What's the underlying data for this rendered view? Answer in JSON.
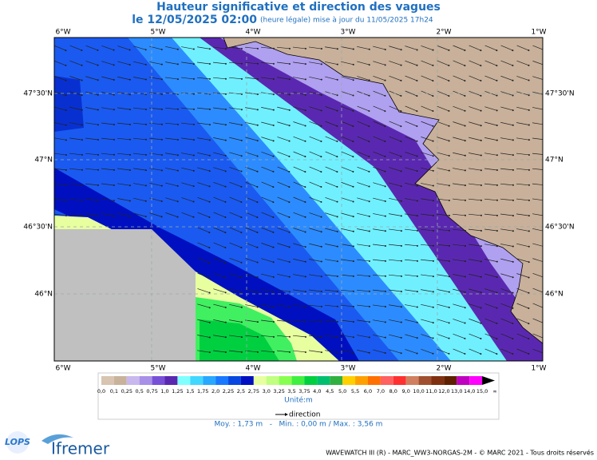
{
  "title": "Hauteur significative et direction des vagues",
  "subtitle": {
    "date": "le 12/05/2025 02:00",
    "note": "(heure légale) mise à jour du 11/05/2025 17h24"
  },
  "map": {
    "lon_labels": [
      "6°W",
      "5°W",
      "4°W",
      "3°W",
      "2°W",
      "1°W"
    ],
    "lat_labels": [
      "47°30'N",
      "47°N",
      "46°30'N",
      "46°N"
    ]
  },
  "legend": {
    "labels": [
      "0,0",
      "0,1",
      "0,25",
      "0,5",
      "0,75",
      "1,0",
      "1,25",
      "1,5",
      "1,75",
      "2,0",
      "2,25",
      "2,5",
      "2,75",
      "3,0",
      "3,25",
      "3,5",
      "3,75",
      "4,0",
      "4,5",
      "5,0",
      "5,5",
      "6,0",
      "7,0",
      "8,0",
      "9,0",
      "10,0",
      "11,0",
      "12,0",
      "13,0",
      "14,0",
      "15,0",
      "∞"
    ],
    "colors": [
      "#d8c4b0",
      "#c9b29c",
      "#c8b8ee",
      "#a890e8",
      "#7850d8",
      "#5a28b0",
      "#80ffff",
      "#40d8ff",
      "#28a8ff",
      "#1878ff",
      "#0848e0",
      "#0010c0",
      "#e8ffa0",
      "#c0ff80",
      "#88ff50",
      "#40f040",
      "#00d040",
      "#00c070",
      "#30b040",
      "#ffd000",
      "#ffa000",
      "#ff7000",
      "#ff6060",
      "#ff3030",
      "#d08060",
      "#a05030",
      "#803010",
      "#602000",
      "#c000c0",
      "#ff00ff",
      "#000000"
    ],
    "unit": "Unité:m",
    "direction": "direction"
  },
  "stats": "Moy. : 1,73 m   -   Min. : 0,00 m / Max. : 3,56 m",
  "footer": {
    "logo_lops": "LOPS",
    "logo_ifremer": "Ifremer",
    "credit": "WAVEWATCH III (R) - MARC_WW3-NORGAS-2M - © MARC 2021 - Tous droits réservés"
  }
}
